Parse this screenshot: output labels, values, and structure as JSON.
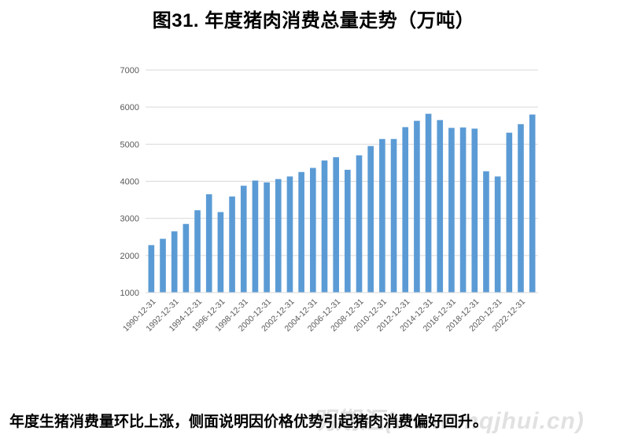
{
  "page": {
    "title": "图31. 年度猪肉消费总量走势（万吨）",
    "caption": "年度生猪消费量环比上涨，侧面说明因价格优势引起猪肉消费偏好回升。",
    "watermark": "明期汇(www.mqjhui.cn)"
  },
  "colors": {
    "bar": "#5B9BD5",
    "grid": "#d9d9d9",
    "tick": "#595959"
  },
  "chart_data": {
    "type": "bar",
    "title": "图31. 年度猪肉消费总量走势（万吨）",
    "xlabel": "",
    "ylabel": "",
    "ylim": [
      1000,
      7000
    ],
    "yticks": [
      1000,
      2000,
      3000,
      4000,
      5000,
      6000,
      7000
    ],
    "grid": true,
    "legend": "none",
    "categories": [
      "1990-12-31",
      "1991-12-31",
      "1992-12-31",
      "1993-12-31",
      "1994-12-31",
      "1995-12-31",
      "1996-12-31",
      "1997-12-31",
      "1998-12-31",
      "1999-12-31",
      "2000-12-31",
      "2001-12-31",
      "2002-12-31",
      "2003-12-31",
      "2004-12-31",
      "2005-12-31",
      "2006-12-31",
      "2007-12-31",
      "2008-12-31",
      "2009-12-31",
      "2010-12-31",
      "2011-12-31",
      "2012-12-31",
      "2013-12-31",
      "2014-12-31",
      "2015-12-31",
      "2016-12-31",
      "2017-12-31",
      "2018-12-31",
      "2019-12-31",
      "2020-12-31",
      "2021-12-31",
      "2022-12-31",
      "2023-12-31"
    ],
    "shown_tick_labels": [
      "1990-12-31",
      "1992-12-31",
      "1994-12-31",
      "1996-12-31",
      "1998-12-31",
      "2000-12-31",
      "2002-12-31",
      "2004-12-31",
      "2006-12-31",
      "2008-12-31",
      "2010-12-31",
      "2012-12-31",
      "2014-12-31",
      "2016-12-31",
      "2018-12-31",
      "2020-12-31",
      "2022-12-31"
    ],
    "values": [
      2280,
      2450,
      2650,
      2850,
      3220,
      3650,
      3170,
      3590,
      3880,
      4020,
      3970,
      4060,
      4130,
      4250,
      4360,
      4560,
      4650,
      4310,
      4700,
      4950,
      5140,
      5140,
      5460,
      5630,
      5820,
      5650,
      5440,
      5450,
      5420,
      4270,
      4130,
      5310,
      5540,
      5800
    ]
  }
}
